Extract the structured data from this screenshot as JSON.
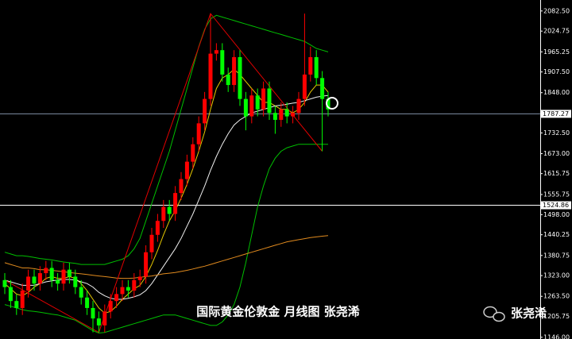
{
  "chart_data": {
    "type": "candlestick",
    "caption": "国际黄金伦敦金 月线图 张尧浠",
    "watermark": "张尧浠",
    "ylim": [
      1141,
      2114
    ],
    "yticks": [
      {
        "value": 2082.5,
        "label": "2082.50"
      },
      2024.75,
      1965.25,
      {
        "value": 1907.5,
        "label": "1907.50"
      },
      {
        "value": 1848,
        "label": "1848.00"
      },
      {
        "value": 1732.5,
        "label": "1732.50"
      },
      {
        "value": 1673,
        "label": "1673.00"
      },
      1615.75,
      1555.75,
      {
        "value": 1498,
        "label": "1498.00"
      },
      1440.25,
      1380.75,
      {
        "value": 1323,
        "label": "1323.00"
      },
      {
        "value": 1263.5,
        "label": "1263.50"
      },
      1205.75,
      {
        "value": 1146,
        "label": "1146.00"
      }
    ],
    "price_lines": [
      {
        "value": 1787.27,
        "color": "#7f8fa6"
      },
      {
        "value": 1524.86,
        "color": "#ffffff"
      }
    ],
    "up_color": "#ff0000",
    "down_color": "#00ff00",
    "open": [
      1310,
      1290,
      1250,
      1230,
      1280,
      1320,
      1300,
      1330,
      1345,
      1310,
      1300,
      1340,
      1320,
      1290,
      1260,
      1230,
      1200,
      1180,
      1220,
      1250,
      1270,
      1290,
      1280,
      1310,
      1320,
      1390,
      1440,
      1480,
      1520,
      1500,
      1560,
      1600,
      1650,
      1700,
      1760,
      1830,
      1960,
      1970,
      1900,
      1870,
      1950,
      1830,
      1780,
      1840,
      1800,
      1860,
      1790,
      1770,
      1800,
      1780,
      1790,
      1830,
      1900,
      1950,
      1890,
      1830
    ],
    "high": [
      1330,
      1310,
      1270,
      1300,
      1340,
      1340,
      1350,
      1365,
      1365,
      1330,
      1360,
      1360,
      1340,
      1310,
      1280,
      1250,
      1220,
      1240,
      1270,
      1290,
      1310,
      1310,
      1330,
      1340,
      1410,
      1460,
      1500,
      1540,
      1540,
      1580,
      1620,
      1670,
      1720,
      1780,
      1850,
      2075,
      1990,
      1990,
      1920,
      1970,
      1970,
      1850,
      1860,
      1860,
      1880,
      1880,
      1810,
      1820,
      1820,
      1810,
      1850,
      2075,
      1980,
      1970,
      1910,
      1850
    ],
    "low": [
      1270,
      1230,
      1210,
      1210,
      1260,
      1280,
      1280,
      1310,
      1290,
      1280,
      1280,
      1300,
      1270,
      1240,
      1210,
      1160,
      1160,
      1160,
      1200,
      1230,
      1250,
      1260,
      1260,
      1290,
      1300,
      1370,
      1420,
      1460,
      1480,
      1480,
      1540,
      1580,
      1630,
      1680,
      1740,
      1810,
      1940,
      1880,
      1850,
      1850,
      1810,
      1740,
      1760,
      1780,
      1780,
      1770,
      1730,
      1750,
      1760,
      1760,
      1770,
      1810,
      1880,
      1870,
      1680,
      1780
    ],
    "close": [
      1290,
      1250,
      1230,
      1280,
      1320,
      1300,
      1330,
      1345,
      1310,
      1300,
      1340,
      1320,
      1290,
      1260,
      1230,
      1200,
      1180,
      1220,
      1250,
      1270,
      1290,
      1280,
      1310,
      1320,
      1390,
      1440,
      1480,
      1520,
      1500,
      1560,
      1600,
      1650,
      1700,
      1760,
      1830,
      1960,
      1970,
      1900,
      1870,
      1950,
      1830,
      1780,
      1840,
      1800,
      1860,
      1790,
      1770,
      1800,
      1780,
      1790,
      1830,
      1900,
      1950,
      1890,
      1830,
      1800
    ],
    "lines": [
      {
        "color": "#00c000",
        "values": [
          1390,
          1385,
          1380,
          1380,
          1378,
          1375,
          1372,
          1370,
          1368,
          1365,
          1362,
          1360,
          1358,
          1355,
          1355,
          1355,
          1355,
          1355,
          1360,
          1365,
          1370,
          1380,
          1400,
          1430,
          1480,
          1530,
          1580,
          1630,
          1680,
          1740,
          1800,
          1860,
          1920,
          1980,
          2030,
          2060,
          2070,
          2065,
          2060,
          2055,
          2050,
          2045,
          2040,
          2035,
          2030,
          2025,
          2020,
          2015,
          2010,
          2005,
          2000,
          1995,
          1985,
          1975,
          1970,
          1965
        ]
      },
      {
        "color": "#00c000",
        "values": [
          1240,
          1235,
          1230,
          1225,
          1222,
          1220,
          1218,
          1215,
          1212,
          1210,
          1205,
          1200,
          1195,
          1185,
          1175,
          1165,
          1158,
          1160,
          1165,
          1170,
          1175,
          1180,
          1185,
          1190,
          1195,
          1200,
          1205,
          1210,
          1210,
          1210,
          1205,
          1200,
          1195,
          1190,
          1185,
          1180,
          1180,
          1190,
          1210,
          1240,
          1290,
          1360,
          1440,
          1520,
          1580,
          1630,
          1660,
          1680,
          1690,
          1695,
          1700,
          1700,
          1700,
          1700,
          1700,
          1700
        ]
      },
      {
        "color": "#e6c800",
        "values": [
          1300,
          1285,
          1270,
          1265,
          1275,
          1290,
          1300,
          1315,
          1320,
          1315,
          1315,
          1320,
          1315,
          1300,
          1280,
          1255,
          1230,
          1215,
          1220,
          1235,
          1255,
          1270,
          1285,
          1295,
          1320,
          1355,
          1395,
          1440,
          1480,
          1510,
          1545,
          1585,
          1630,
          1680,
          1735,
          1800,
          1860,
          1890,
          1900,
          1915,
          1900,
          1880,
          1860,
          1840,
          1820,
          1820,
          1810,
          1800,
          1800,
          1790,
          1800,
          1820,
          1850,
          1870,
          1870,
          1850
        ]
      },
      {
        "color": "#f0f0f0",
        "values": [
          1310,
          1305,
          1300,
          1295,
          1295,
          1295,
          1300,
          1305,
          1308,
          1310,
          1312,
          1312,
          1310,
          1305,
          1300,
          1290,
          1275,
          1265,
          1258,
          1255,
          1255,
          1258,
          1262,
          1268,
          1280,
          1300,
          1325,
          1350,
          1375,
          1400,
          1430,
          1465,
          1500,
          1540,
          1580,
          1625,
          1665,
          1700,
          1730,
          1755,
          1770,
          1780,
          1790,
          1795,
          1800,
          1805,
          1810,
          1812,
          1815,
          1818,
          1820,
          1825,
          1830,
          1835,
          1838,
          1840
        ]
      },
      {
        "color": "#e08a1e",
        "values": [
          1360,
          1355,
          1350,
          1345,
          1345,
          1343,
          1340,
          1340,
          1338,
          1336,
          1334,
          1332,
          1330,
          1328,
          1326,
          1324,
          1322,
          1320,
          1318,
          1316,
          1315,
          1315,
          1316,
          1318,
          1320,
          1322,
          1325,
          1328,
          1330,
          1332,
          1335,
          1338,
          1342,
          1346,
          1350,
          1355,
          1360,
          1365,
          1370,
          1375,
          1380,
          1385,
          1390,
          1395,
          1400,
          1405,
          1410,
          1415,
          1420,
          1423,
          1426,
          1429,
          1432,
          1434,
          1436,
          1438
        ]
      }
    ],
    "zigzag": {
      "color": "#e00000",
      "x": [
        0,
        16,
        35,
        54
      ],
      "values": [
        1310,
        1160,
        2075,
        1680
      ]
    }
  }
}
